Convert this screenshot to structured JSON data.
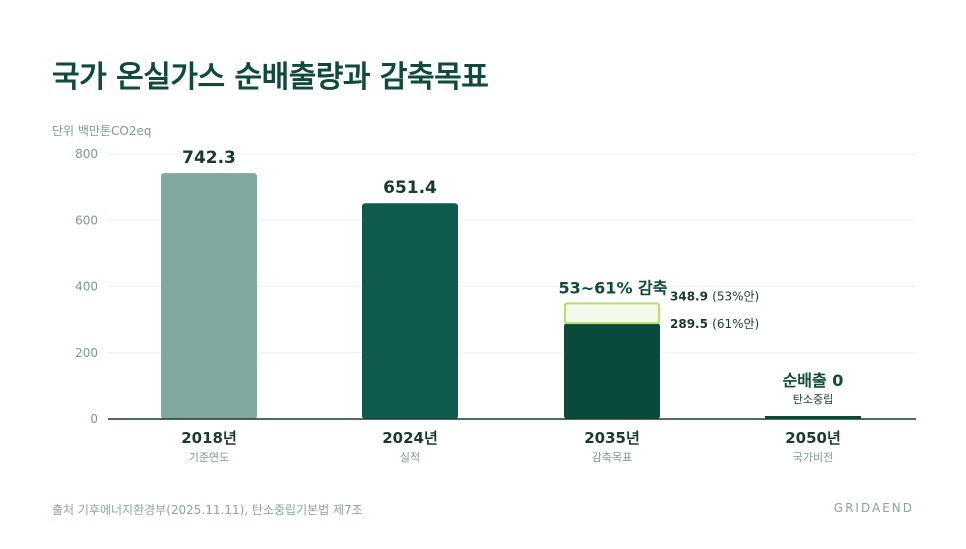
{
  "title": "국가 온실가스 순배출량과 감축목표",
  "unit_label": "단위 백만톤CO2eq",
  "footer": {
    "source": "출처 기후에너지환경부(2025.11.11), 탄소중립기본법 제7조",
    "brand": "GRIDAEND"
  },
  "colors": {
    "bar_2018": "#7fa89f",
    "bar_2024": "#0d5b4d",
    "bar_2035": "#0a4a3c",
    "bar_2035_range": "#f3f8ea",
    "bar_2035_range_stroke": "#b5e16a",
    "bar_2050": "#0a4a3c",
    "axis": "#1a3a30",
    "grid": "#eef2f0"
  },
  "chart_data": {
    "type": "bar",
    "categories": [
      "2018년",
      "2024년",
      "2035년",
      "2050년"
    ],
    "subcategories": [
      "기준연도",
      "실적",
      "감축목표",
      "국가비전"
    ],
    "values": [
      742.3,
      651.4,
      289.5,
      0
    ],
    "value_labels": [
      "742.3",
      "651.4",
      "",
      ""
    ],
    "target_range": {
      "category": "2035년",
      "low": 289.5,
      "high": 348.9,
      "title": "53~61% 감축",
      "high_label_value": "348.9",
      "high_label_pct": "(53%안)",
      "low_label_value": "289.5",
      "low_label_pct": "(61%안)"
    },
    "net_zero": {
      "category": "2050년",
      "title": "순배출 0",
      "subtitle": "탄소중립"
    },
    "yticks": [
      "0",
      "200",
      "400",
      "600",
      "800"
    ],
    "ylim": [
      0,
      800
    ],
    "grid": true,
    "legend": "none"
  }
}
